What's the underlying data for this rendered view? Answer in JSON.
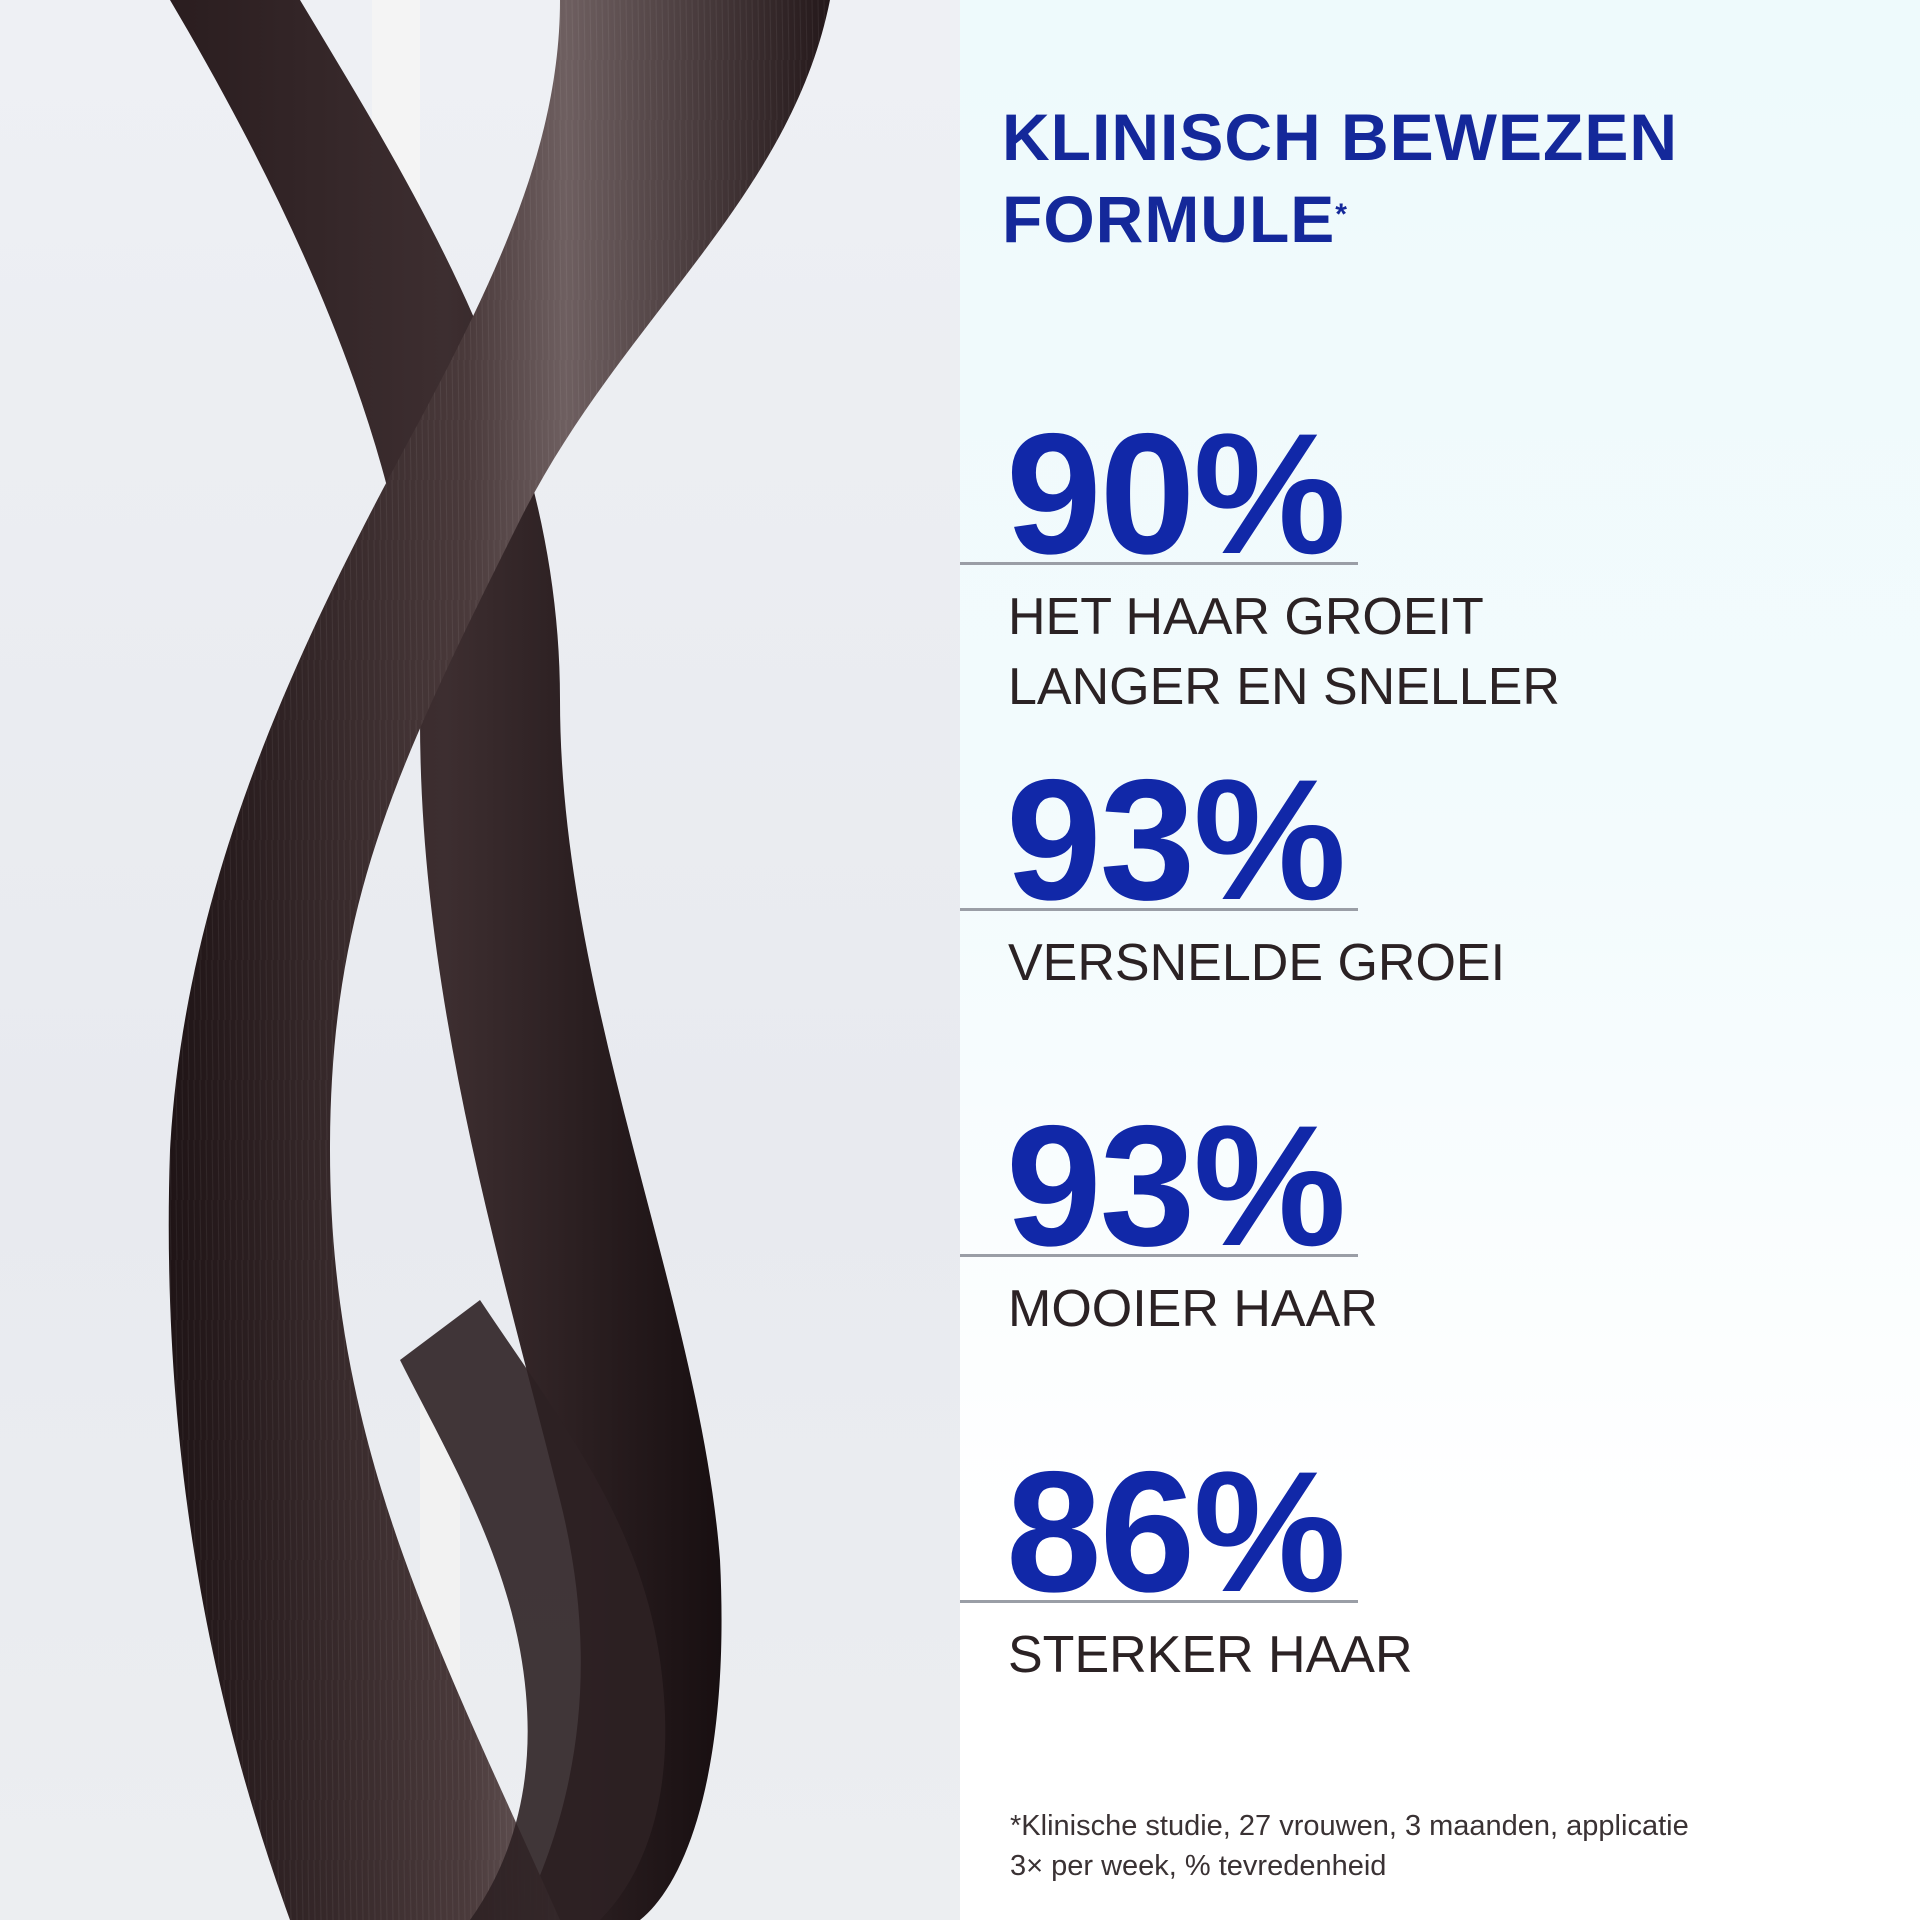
{
  "title": {
    "line1": "KLINISCH BEWEZEN",
    "line2": "FORMULE",
    "asterisk": "*"
  },
  "stats": [
    {
      "value": "90%",
      "label_line1": "HET HAAR GROEIT",
      "label_line2": "LANGER EN SNELLER"
    },
    {
      "value": "93%",
      "label_line1": "VERSNELDE GROEI",
      "label_line2": ""
    },
    {
      "value": "93%",
      "label_line1": "MOOIER HAAR",
      "label_line2": ""
    },
    {
      "value": "86%",
      "label_line1": "STERKER HAAR",
      "label_line2": ""
    }
  ],
  "footnote": {
    "line1": "*Klinische studie, 27 vrouwen, 3 maanden, applicatie",
    "line2": "3× per week, % tevredenheid"
  },
  "colors": {
    "accent_blue": "#1128a8",
    "hair": "#3a2a2a",
    "text_dark": "#2b2224"
  }
}
